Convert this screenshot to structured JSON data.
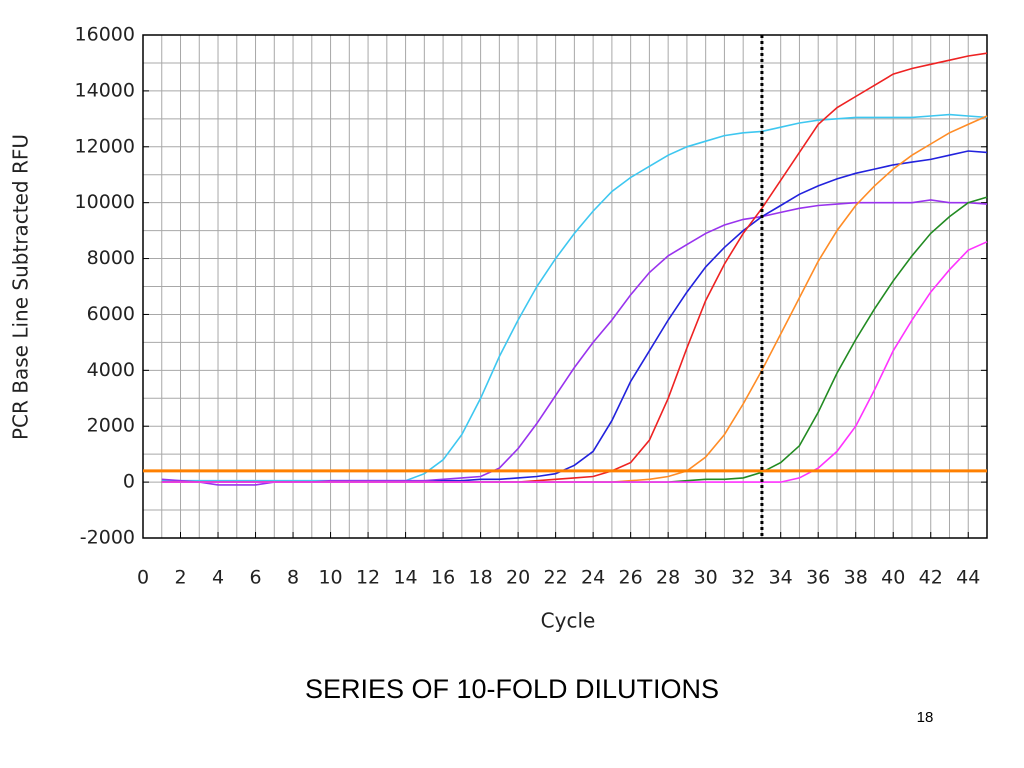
{
  "chart_data": {
    "type": "line",
    "title": "SERIES OF 10-FOLD DILUTIONS",
    "xlabel": "Cycle",
    "ylabel": "PCR Base Line Subtracted RFU",
    "x": [
      1,
      2,
      3,
      4,
      5,
      6,
      7,
      8,
      9,
      10,
      11,
      12,
      13,
      14,
      15,
      16,
      17,
      18,
      19,
      20,
      21,
      22,
      23,
      24,
      25,
      26,
      27,
      28,
      29,
      30,
      31,
      32,
      33,
      34,
      35,
      36,
      37,
      38,
      39,
      40,
      41,
      42,
      43,
      44,
      45
    ],
    "series": [
      {
        "color": "#3ec7f0",
        "values": [
          50,
          50,
          50,
          50,
          50,
          50,
          50,
          50,
          50,
          50,
          50,
          50,
          50,
          50,
          300,
          800,
          1700,
          3000,
          4500,
          5800,
          7000,
          8000,
          8900,
          9700,
          10400,
          10900,
          11300,
          11700,
          12000,
          12200,
          12400,
          12500,
          12550,
          12700,
          12850,
          12950,
          13000,
          13050,
          13050,
          13050,
          13050,
          13100,
          13150,
          13100,
          13050
        ]
      },
      {
        "color": "#9933ee",
        "values": [
          100,
          50,
          0,
          -100,
          -100,
          -100,
          0,
          0,
          0,
          50,
          50,
          50,
          50,
          50,
          50,
          100,
          150,
          200,
          500,
          1200,
          2100,
          3100,
          4100,
          5000,
          5800,
          6700,
          7500,
          8100,
          8500,
          8900,
          9200,
          9400,
          9500,
          9650,
          9800,
          9900,
          9950,
          10000,
          10000,
          10000,
          10000,
          10100,
          10000,
          10000,
          9950
        ]
      },
      {
        "color": "#2222dd",
        "values": [
          0,
          0,
          0,
          0,
          0,
          0,
          0,
          0,
          0,
          0,
          0,
          0,
          0,
          0,
          0,
          50,
          50,
          100,
          100,
          150,
          200,
          300,
          600,
          1100,
          2200,
          3600,
          4700,
          5800,
          6800,
          7700,
          8400,
          9000,
          9500,
          9900,
          10300,
          10600,
          10850,
          11050,
          11200,
          11350,
          11450,
          11550,
          11700,
          11850,
          11800
        ]
      },
      {
        "color": "#ee2222",
        "values": [
          0,
          0,
          0,
          0,
          0,
          0,
          0,
          0,
          0,
          0,
          0,
          0,
          0,
          0,
          0,
          0,
          0,
          0,
          0,
          0,
          50,
          100,
          150,
          200,
          400,
          700,
          1500,
          3000,
          4800,
          6500,
          7800,
          8900,
          9800,
          10800,
          11800,
          12800,
          13400,
          13800,
          14200,
          14600,
          14800,
          14950,
          15100,
          15250,
          15350
        ]
      },
      {
        "color": "#ff8c26",
        "values": [
          0,
          0,
          0,
          0,
          0,
          0,
          0,
          0,
          0,
          0,
          0,
          0,
          0,
          0,
          0,
          0,
          0,
          0,
          0,
          0,
          0,
          0,
          0,
          0,
          0,
          50,
          100,
          200,
          400,
          900,
          1700,
          2800,
          4000,
          5300,
          6600,
          7900,
          9000,
          9900,
          10600,
          11200,
          11700,
          12100,
          12500,
          12800,
          13100
        ]
      },
      {
        "color": "#228b22",
        "values": [
          0,
          0,
          0,
          0,
          0,
          0,
          0,
          0,
          0,
          0,
          0,
          0,
          0,
          0,
          0,
          0,
          0,
          0,
          0,
          0,
          0,
          0,
          0,
          0,
          0,
          0,
          0,
          0,
          50,
          100,
          100,
          150,
          350,
          700,
          1300,
          2500,
          3900,
          5100,
          6200,
          7200,
          8100,
          8900,
          9500,
          10000,
          10200
        ]
      },
      {
        "color": "#ff33ff",
        "values": [
          0,
          0,
          0,
          0,
          0,
          0,
          0,
          0,
          0,
          0,
          0,
          0,
          0,
          0,
          0,
          0,
          0,
          0,
          0,
          0,
          0,
          0,
          0,
          0,
          0,
          0,
          0,
          0,
          0,
          0,
          0,
          0,
          0,
          0,
          150,
          500,
          1100,
          2000,
          3300,
          4700,
          5800,
          6800,
          7600,
          8300,
          8600
        ]
      }
    ],
    "threshold": 400,
    "threshold_color": "#ff8000",
    "cutoff_cycle": 33,
    "xlim": [
      0,
      45
    ],
    "xticks": [
      0,
      2,
      4,
      6,
      8,
      10,
      12,
      14,
      16,
      18,
      20,
      22,
      24,
      26,
      28,
      30,
      32,
      34,
      36,
      38,
      40,
      42,
      44
    ],
    "ylim": [
      -2000,
      16000
    ],
    "yticks": [
      -2000,
      0,
      2000,
      4000,
      6000,
      8000,
      10000,
      12000,
      14000,
      16000
    ],
    "grid": true
  },
  "page_number": "18"
}
